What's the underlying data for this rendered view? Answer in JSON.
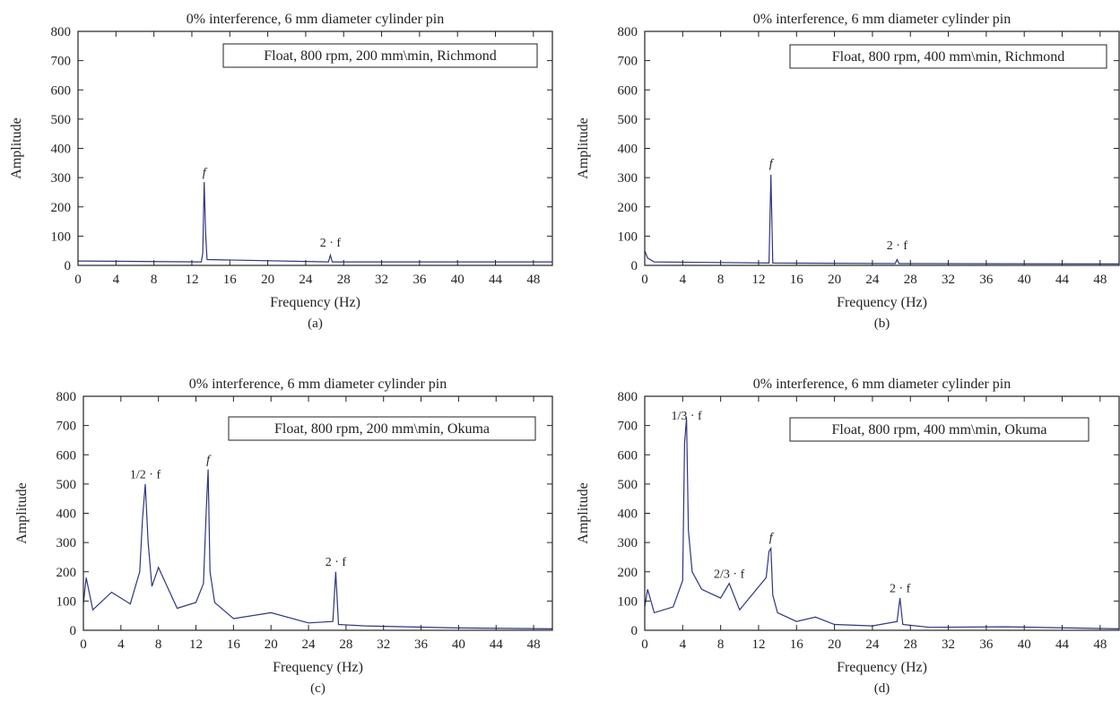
{
  "colors": {
    "series": "#2f3580",
    "axis": "#222222",
    "background": "#ffffff"
  },
  "chart_data": [
    {
      "panel": "a",
      "type": "line",
      "caption": "(a)",
      "title": "0% interference, 6 mm diameter cylinder pin",
      "xlabel": "Frequency (Hz)",
      "ylabel": "Amplitude",
      "xlim": [
        0,
        50
      ],
      "ylim": [
        0,
        800
      ],
      "xticks": [
        0,
        4,
        8,
        12,
        16,
        20,
        24,
        28,
        32,
        36,
        40,
        44,
        48
      ],
      "yticks": [
        0,
        100,
        200,
        300,
        400,
        500,
        600,
        700,
        800
      ],
      "grid": false,
      "legend_box": "Float, 800 rpm, 200 mm\\min, Richmond",
      "legend_position": "top-right",
      "annotations": [
        {
          "text": "f",
          "x": 13.3,
          "y": 305
        },
        {
          "text": "2 · f",
          "x": 26.6,
          "y": 65
        }
      ],
      "series": [
        {
          "x": [
            0,
            13.0,
            13.15,
            13.3,
            13.45,
            13.6,
            26.4,
            26.6,
            26.8,
            50
          ],
          "y": [
            15,
            12,
            40,
            285,
            110,
            20,
            12,
            35,
            12,
            12
          ]
        }
      ]
    },
    {
      "panel": "b",
      "type": "line",
      "caption": "(b)",
      "title": "0% interference, 6 mm diameter cylinder pin",
      "xlabel": "Frequency (Hz)",
      "ylabel": "Amplitude",
      "xlim": [
        0,
        50
      ],
      "ylim": [
        0,
        800
      ],
      "xticks": [
        0,
        4,
        8,
        12,
        16,
        20,
        24,
        28,
        32,
        36,
        40,
        44,
        48
      ],
      "yticks": [
        0,
        100,
        200,
        300,
        400,
        500,
        600,
        700,
        800
      ],
      "grid": false,
      "legend_box": "Float, 800 rpm, 400 mm\\min, Richmond",
      "legend_position": "top-right",
      "annotations": [
        {
          "text": "f",
          "x": 13.3,
          "y": 335
        },
        {
          "text": "2 · f",
          "x": 26.6,
          "y": 55
        }
      ],
      "series": [
        {
          "x": [
            0,
            0.3,
            1.0,
            13.1,
            13.3,
            13.5,
            26.4,
            26.6,
            26.8,
            50
          ],
          "y": [
            50,
            25,
            12,
            8,
            310,
            8,
            6,
            20,
            6,
            5
          ]
        }
      ]
    },
    {
      "panel": "c",
      "type": "line",
      "caption": "(c)",
      "title": "0% interference, 6 mm diameter cylinder pin",
      "xlabel": "Frequency (Hz)",
      "ylabel": "Amplitude",
      "xlim": [
        0,
        50
      ],
      "ylim": [
        0,
        800
      ],
      "xticks": [
        0,
        4,
        8,
        12,
        16,
        20,
        24,
        28,
        32,
        36,
        40,
        44,
        48
      ],
      "yticks": [
        0,
        100,
        200,
        300,
        400,
        500,
        600,
        700,
        800
      ],
      "grid": false,
      "legend_box": "Float, 800 rpm, 200 mm\\min, Okuma",
      "legend_position": "top-right",
      "annotations": [
        {
          "text": "1/2 · f",
          "x": 6.6,
          "y": 520
        },
        {
          "text": "f",
          "x": 13.3,
          "y": 570
        },
        {
          "text": "2 · f",
          "x": 26.9,
          "y": 220
        }
      ],
      "series": [
        {
          "x": [
            0,
            0.3,
            1.0,
            3.0,
            5.0,
            6.0,
            6.3,
            6.6,
            6.9,
            7.3,
            8.0,
            10.0,
            12.0,
            12.8,
            13.1,
            13.3,
            13.5,
            14.0,
            16.0,
            20.0,
            24.0,
            26.6,
            26.9,
            27.2,
            30.0,
            40.0,
            50.0
          ],
          "y": [
            90,
            180,
            70,
            130,
            90,
            200,
            380,
            500,
            300,
            150,
            215,
            75,
            95,
            160,
            410,
            550,
            200,
            95,
            40,
            60,
            25,
            30,
            200,
            20,
            15,
            8,
            5
          ]
        }
      ]
    },
    {
      "panel": "d",
      "type": "line",
      "caption": "(d)",
      "title": "0% interference, 6 mm diameter cylinder pin",
      "xlabel": "Frequency (Hz)",
      "ylabel": "Amplitude",
      "xlim": [
        0,
        50
      ],
      "ylim": [
        0,
        800
      ],
      "xticks": [
        0,
        4,
        8,
        12,
        16,
        20,
        24,
        28,
        32,
        36,
        40,
        44,
        48
      ],
      "yticks": [
        0,
        100,
        200,
        300,
        400,
        500,
        600,
        700,
        800
      ],
      "grid": false,
      "legend_box": "Float, 800 rpm, 400 mm\\min, Okuma",
      "legend_position": "top-right",
      "annotations": [
        {
          "text": "1/3 · f",
          "x": 4.4,
          "y": 720
        },
        {
          "text": "2/3 · f",
          "x": 8.9,
          "y": 180
        },
        {
          "text": "f",
          "x": 13.3,
          "y": 305
        },
        {
          "text": "2 · f",
          "x": 26.9,
          "y": 130
        }
      ],
      "series": [
        {
          "x": [
            0,
            0.3,
            1.0,
            3.0,
            4.0,
            4.2,
            4.4,
            4.6,
            5.0,
            6.0,
            8.0,
            8.9,
            10.0,
            12.8,
            13.1,
            13.3,
            13.5,
            14.0,
            16.0,
            18.0,
            20.0,
            24.0,
            26.6,
            26.9,
            27.2,
            30.0,
            38.0,
            50.0
          ],
          "y": [
            80,
            140,
            60,
            80,
            170,
            640,
            725,
            340,
            200,
            140,
            110,
            160,
            70,
            180,
            270,
            280,
            120,
            60,
            30,
            45,
            20,
            15,
            30,
            110,
            20,
            10,
            12,
            5
          ]
        }
      ]
    }
  ]
}
